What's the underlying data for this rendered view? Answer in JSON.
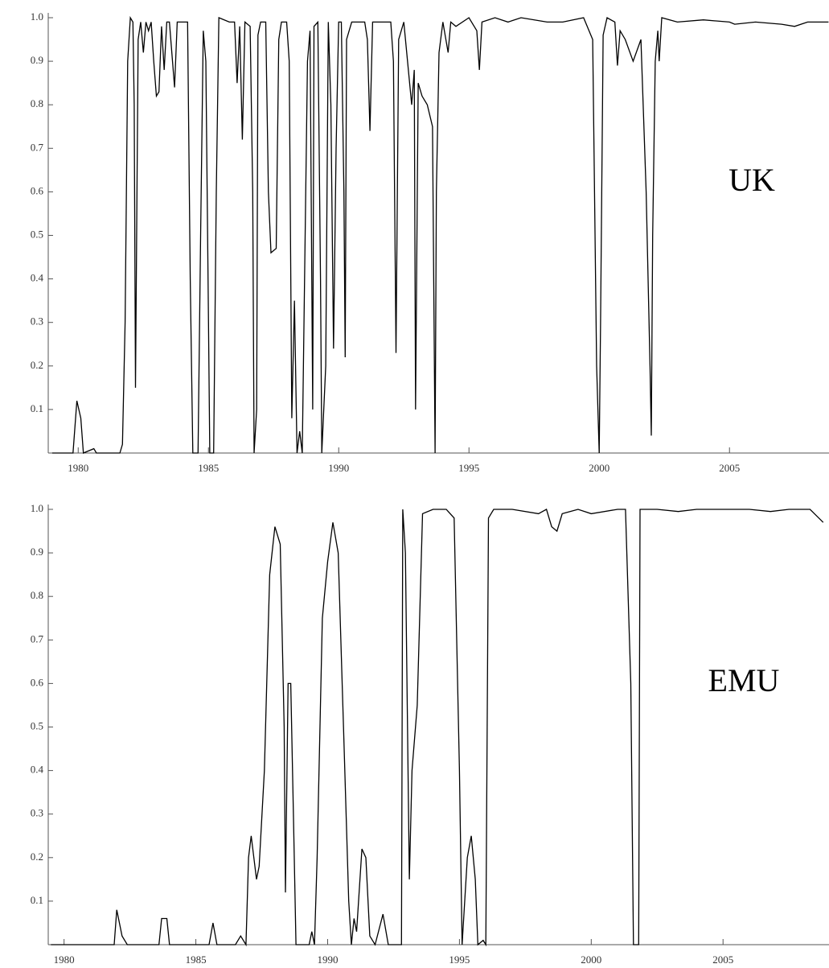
{
  "chart_data": [
    {
      "type": "line",
      "annotation": "UK",
      "color": "#000000",
      "xlim": [
        1978.85,
        2008.82
      ],
      "ylim": [
        0,
        1
      ],
      "xticks": [
        1980,
        1985,
        1990,
        1995,
        2000,
        2005
      ],
      "yticks": [
        0.1,
        0.2,
        0.3,
        0.4,
        0.5,
        0.6,
        0.7,
        0.8,
        0.9,
        {
          "value": 1,
          "label": "1.0"
        }
      ],
      "x": [
        1979.0,
        1979.8,
        1979.95,
        1980.1,
        1980.2,
        1980.6,
        1980.7,
        1981.6,
        1981.7,
        1981.8,
        1981.9,
        1982.0,
        1982.1,
        1982.15,
        1982.2,
        1982.3,
        1982.4,
        1982.5,
        1982.6,
        1982.7,
        1982.8,
        1982.9,
        1983.0,
        1983.1,
        1983.2,
        1983.3,
        1983.4,
        1983.5,
        1983.7,
        1983.8,
        1983.9,
        1984.0,
        1984.2,
        1984.3,
        1984.4,
        1984.6,
        1984.7,
        1984.8,
        1984.9,
        1985.0,
        1985.05,
        1985.2,
        1985.3,
        1985.4,
        1985.8,
        1986.0,
        1986.1,
        1986.2,
        1986.3,
        1986.4,
        1986.6,
        1986.7,
        1986.75,
        1986.85,
        1986.9,
        1987.0,
        1987.2,
        1987.3,
        1987.4,
        1987.6,
        1987.7,
        1987.8,
        1988.0,
        1988.1,
        1988.2,
        1988.3,
        1988.4,
        1988.5,
        1988.6,
        1988.8,
        1988.9,
        1989.0,
        1989.05,
        1989.2,
        1989.3,
        1989.35,
        1989.5,
        1989.6,
        1989.7,
        1989.8,
        1989.9,
        1990.0,
        1990.1,
        1990.2,
        1990.25,
        1990.3,
        1990.5,
        1991.0,
        1991.1,
        1991.2,
        1991.3,
        1991.5,
        1992.0,
        1992.1,
        1992.2,
        1992.3,
        1992.5,
        1992.8,
        1992.9,
        1992.95,
        1993.05,
        1993.2,
        1993.4,
        1993.6,
        1993.7,
        1993.75,
        1993.85,
        1994.0,
        1994.2,
        1994.3,
        1994.5,
        1995.0,
        1995.3,
        1995.4,
        1995.5,
        1996.0,
        1996.5,
        1997.0,
        1998.0,
        1998.6,
        1999.4,
        1999.75,
        1999.9,
        2000.0,
        2000.05,
        2000.15,
        2000.3,
        2000.6,
        2000.7,
        2000.8,
        2001.0,
        2001.3,
        2001.6,
        2001.8,
        2001.95,
        2002.0,
        2002.05,
        2002.15,
        2002.25,
        2002.3,
        2002.4,
        2003.0,
        2004.0,
        2005.0,
        2005.2,
        2006.0,
        2007.0,
        2007.5,
        2008.0,
        2008.8
      ],
      "values": [
        0,
        0,
        0.12,
        0.08,
        0,
        0.01,
        0,
        0,
        0.02,
        0.3,
        0.9,
        1.0,
        0.99,
        0.8,
        0.15,
        0.95,
        0.99,
        0.92,
        0.99,
        0.97,
        0.99,
        0.9,
        0.82,
        0.83,
        0.98,
        0.88,
        0.99,
        0.99,
        0.84,
        0.99,
        0.99,
        0.99,
        0.99,
        0.4,
        0,
        0,
        0.5,
        0.97,
        0.9,
        0.3,
        0,
        0,
        0.6,
        1.0,
        0.99,
        0.99,
        0.85,
        0.98,
        0.72,
        0.99,
        0.98,
        0.6,
        0,
        0.1,
        0.96,
        0.99,
        0.99,
        0.6,
        0.46,
        0.47,
        0.95,
        0.99,
        0.99,
        0.9,
        0.08,
        0.35,
        0,
        0.05,
        0,
        0.9,
        0.97,
        0.1,
        0.98,
        0.99,
        0.4,
        0,
        0.2,
        0.99,
        0.8,
        0.24,
        0.7,
        0.99,
        0.99,
        0.6,
        0.22,
        0.95,
        0.99,
        0.99,
        0.95,
        0.74,
        0.99,
        0.99,
        0.99,
        0.9,
        0.23,
        0.95,
        0.99,
        0.8,
        0.88,
        0.1,
        0.85,
        0.82,
        0.8,
        0.75,
        0,
        0.6,
        0.92,
        0.99,
        0.92,
        0.99,
        0.98,
        1.0,
        0.97,
        0.88,
        0.99,
        1.0,
        0.99,
        1.0,
        0.99,
        0.99,
        1.0,
        0.95,
        0.2,
        0,
        0.3,
        0.96,
        1.0,
        0.99,
        0.89,
        0.97,
        0.95,
        0.9,
        0.95,
        0.6,
        0.2,
        0.04,
        0.5,
        0.9,
        0.97,
        0.9,
        1.0,
        0.99,
        0.995,
        0.99,
        0.985,
        0.99,
        0.985,
        0.98,
        0.99,
        0.99
      ]
    },
    {
      "type": "line",
      "annotation": "EMU",
      "color": "#000000",
      "xlim": [
        1979.4,
        2009.02
      ],
      "ylim": [
        0,
        1
      ],
      "xticks": [
        1980,
        1985,
        1990,
        1995,
        2000,
        2005
      ],
      "yticks": [
        0.1,
        0.2,
        0.3,
        0.4,
        0.5,
        0.6,
        0.7,
        0.8,
        0.9,
        {
          "value": 1,
          "label": "1.0"
        }
      ],
      "x": [
        1979.5,
        1981.9,
        1982.0,
        1982.2,
        1982.4,
        1983.6,
        1983.7,
        1983.9,
        1984.0,
        1985.5,
        1985.65,
        1985.8,
        1986.5,
        1986.7,
        1986.9,
        1987.0,
        1987.1,
        1987.3,
        1987.4,
        1987.6,
        1987.8,
        1988.0,
        1988.2,
        1988.35,
        1988.4,
        1988.5,
        1988.6,
        1988.7,
        1988.8,
        1989.3,
        1989.4,
        1989.5,
        1989.6,
        1989.8,
        1990.0,
        1990.2,
        1990.4,
        1990.6,
        1990.8,
        1990.9,
        1991.0,
        1991.1,
        1991.3,
        1991.45,
        1991.6,
        1991.8,
        1992.1,
        1992.3,
        1992.8,
        1992.85,
        1992.95,
        1993.1,
        1993.2,
        1993.4,
        1993.6,
        1994.0,
        1994.5,
        1994.8,
        1995.0,
        1995.1,
        1995.3,
        1995.45,
        1995.6,
        1995.7,
        1995.9,
        1996.0,
        1996.1,
        1996.3,
        1997.0,
        1998.0,
        1998.3,
        1998.5,
        1998.7,
        1998.9,
        1999.5,
        2000.0,
        2001.0,
        2001.3,
        2001.5,
        2001.6,
        2001.8,
        2001.85,
        2002.5,
        2003.3,
        2004.0,
        2005.0,
        2006.0,
        2006.8,
        2007.5,
        2008.3,
        2008.8
      ],
      "values": [
        0,
        0,
        0.08,
        0.02,
        0,
        0,
        0.06,
        0.06,
        0,
        0,
        0.05,
        0,
        0,
        0.02,
        0,
        0.2,
        0.25,
        0.15,
        0.18,
        0.4,
        0.85,
        0.96,
        0.92,
        0.5,
        0.12,
        0.6,
        0.6,
        0.3,
        0,
        0,
        0.03,
        0,
        0.2,
        0.75,
        0.88,
        0.97,
        0.9,
        0.5,
        0.1,
        0,
        0.06,
        0.03,
        0.22,
        0.2,
        0.02,
        0,
        0.07,
        0,
        0,
        1.0,
        0.9,
        0.15,
        0.4,
        0.55,
        0.99,
        1.0,
        1.0,
        0.98,
        0.4,
        0,
        0.2,
        0.25,
        0.15,
        0,
        0.01,
        0,
        0.98,
        1.0,
        1.0,
        0.99,
        1.0,
        0.96,
        0.95,
        0.99,
        1.0,
        0.99,
        1.0,
        1.0,
        0.6,
        0,
        0,
        1.0,
        1.0,
        0.995,
        1.0,
        1.0,
        1.0,
        0.995,
        1.0,
        1.0,
        0.97
      ]
    }
  ]
}
